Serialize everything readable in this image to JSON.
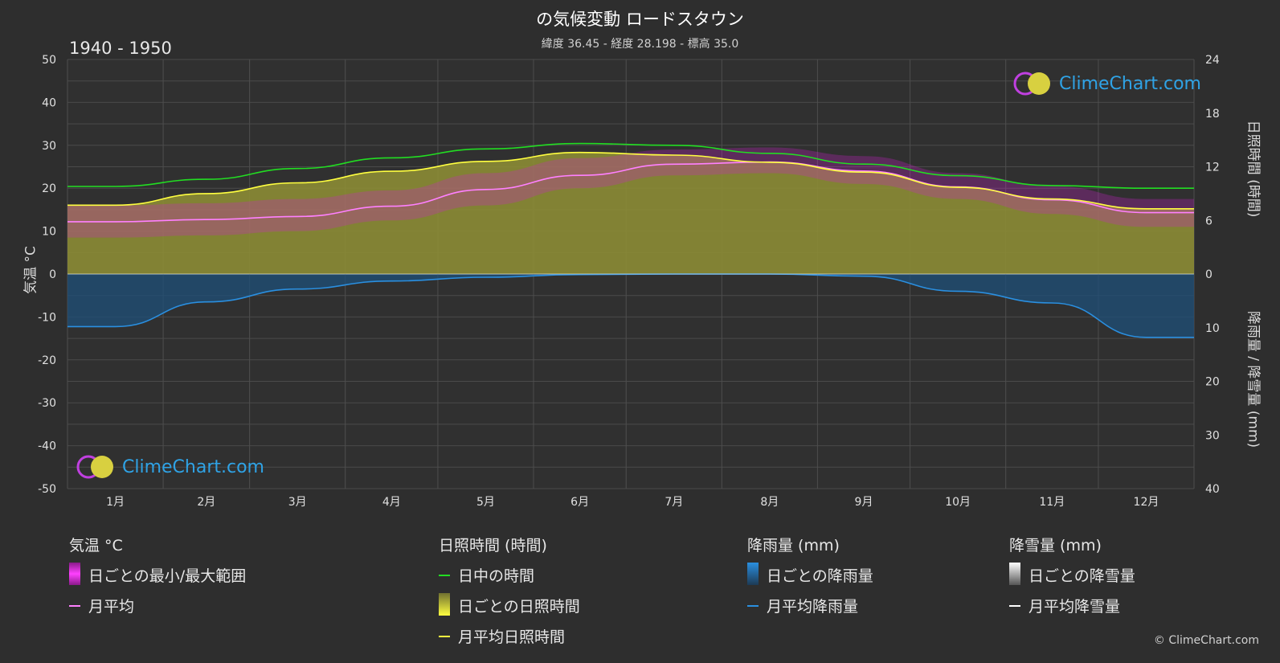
{
  "header": {
    "title": "の気候変動 ロードスタウン",
    "subtitle": "緯度 36.45 - 経度 28.198 - 標高 35.0",
    "period": "1940 - 1950"
  },
  "axes": {
    "left_title": "気温 °C",
    "right_top_title": "日照時間 (時間)",
    "right_bottom_title": "降雨量 / 降雪量 (mm)",
    "left_ticks": [
      "50",
      "40",
      "30",
      "20",
      "10",
      "0",
      "-10",
      "-20",
      "-30",
      "-40",
      "-50"
    ],
    "right_top_ticks": [
      "24",
      "18",
      "12",
      "6",
      "0"
    ],
    "right_bottom_ticks": [
      "10",
      "20",
      "30",
      "40"
    ]
  },
  "logo": {
    "text": "ClimeChart.com"
  },
  "copyright": "© ClimeChart.com",
  "legend": {
    "temp": {
      "head": "気温 °C",
      "range": "日ごとの最小/最大範囲",
      "avg": "月平均"
    },
    "sun": {
      "head": "日照時間 (時間)",
      "daylight": "日中の時間",
      "daily": "日ごとの日照時間",
      "avg": "月平均日照時間"
    },
    "rain": {
      "head": "降雨量 (mm)",
      "daily": "日ごとの降雨量",
      "avg": "月平均降雨量"
    },
    "snow": {
      "head": "降雪量 (mm)",
      "daily": "日ごとの降雪量",
      "avg": "月平均降雪量"
    }
  },
  "colors": {
    "background": "#2e2e2e",
    "temp_range": "#d020d0",
    "temp_avg": "#ff80ff",
    "daylight": "#22dd22",
    "sunshine_fill": "#8c8c35",
    "sunshine_avg": "#ffff40",
    "rain_fill": "#1d4f78",
    "rain_avg": "#2a8fe0",
    "snow_avg": "#ffffff"
  },
  "chart_data": {
    "type": "line",
    "categories": [
      "1月",
      "2月",
      "3月",
      "4月",
      "5月",
      "6月",
      "7月",
      "8月",
      "9月",
      "10月",
      "11月",
      "12月"
    ],
    "temp_ylim": [
      -50,
      50
    ],
    "sun_ylim_hours": [
      0,
      24
    ],
    "precip_ylim_mm": [
      0,
      40
    ],
    "series": [
      {
        "name": "日中の時間",
        "unit": "hours",
        "values": [
          9.8,
          10.6,
          11.8,
          13.0,
          14.0,
          14.6,
          14.4,
          13.5,
          12.3,
          11.0,
          9.9,
          9.6
        ]
      },
      {
        "name": "月平均日照時間",
        "unit": "hours",
        "values": [
          7.7,
          9.0,
          10.2,
          11.5,
          12.6,
          13.6,
          13.3,
          12.5,
          11.4,
          9.7,
          8.4,
          7.3
        ]
      },
      {
        "name": "月平均",
        "unit": "°C",
        "values": [
          12.2,
          12.7,
          13.4,
          15.8,
          19.7,
          23.0,
          25.6,
          26.1,
          24.0,
          20.3,
          17.3,
          14.3
        ]
      },
      {
        "name": "日ごとの最小/最大範囲",
        "unit": "°C",
        "min": [
          8.5,
          9.0,
          10.0,
          12.5,
          16.0,
          20.0,
          23.0,
          23.5,
          21.0,
          17.5,
          14.0,
          11.0
        ],
        "max": [
          16.0,
          16.5,
          17.5,
          19.5,
          23.5,
          27.0,
          29.0,
          29.5,
          27.5,
          23.5,
          20.5,
          17.5
        ]
      },
      {
        "name": "月平均降雨量",
        "unit": "mm",
        "values": [
          9.8,
          5.2,
          2.8,
          1.3,
          0.6,
          0.1,
          0.0,
          0.0,
          0.4,
          3.2,
          5.4,
          11.8
        ]
      },
      {
        "name": "月平均降雪量",
        "unit": "mm",
        "values": [
          0,
          0,
          0,
          0,
          0,
          0,
          0,
          0,
          0,
          0,
          0,
          0
        ]
      }
    ]
  }
}
